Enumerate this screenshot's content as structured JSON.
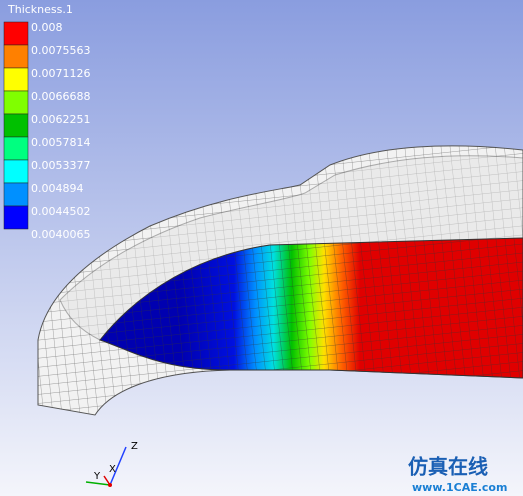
{
  "legend": {
    "title": "Thickness.1",
    "labels": [
      "0.008",
      "0.0075563",
      "0.0071126",
      "0.0066688",
      "0.0062251",
      "0.0057814",
      "0.0053377",
      "0.004894",
      "0.0044502",
      "0.0040065"
    ],
    "colors": [
      "#ff0000",
      "#ff8000",
      "#ffff00",
      "#80ff00",
      "#00c000",
      "#00ff80",
      "#00ffff",
      "#0090ff",
      "#0000ff"
    ]
  },
  "triad": {
    "x": "X",
    "y": "Y",
    "z": "Z"
  },
  "watermark": {
    "title": "仿真在线",
    "url": "www.1CAE.com"
  }
}
